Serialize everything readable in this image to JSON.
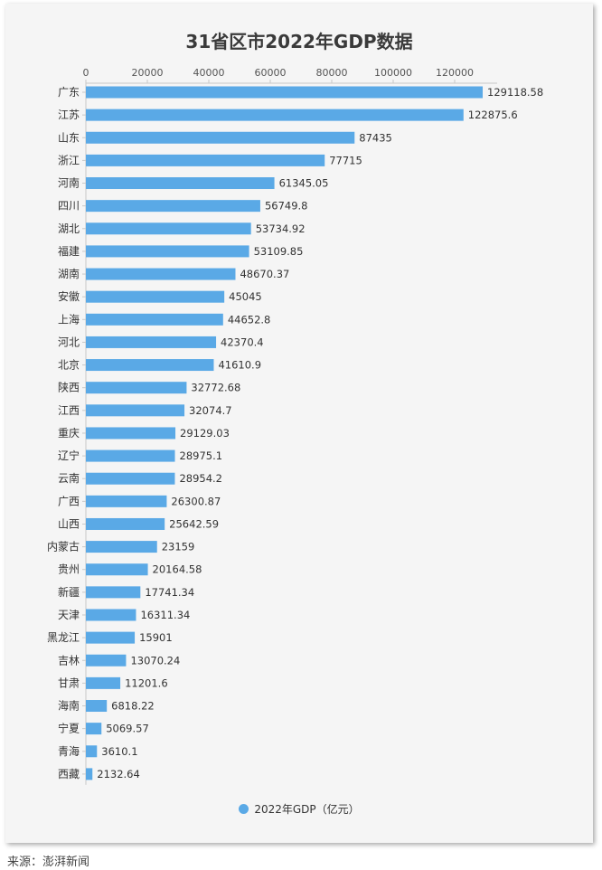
{
  "chart_data": {
    "type": "bar",
    "orientation": "horizontal",
    "title": "31省区市2022年GDP数据",
    "categories": [
      "广东",
      "江苏",
      "山东",
      "浙江",
      "河南",
      "四川",
      "湖北",
      "福建",
      "湖南",
      "安徽",
      "上海",
      "河北",
      "北京",
      "陕西",
      "江西",
      "重庆",
      "辽宁",
      "云南",
      "广西",
      "山西",
      "内蒙古",
      "贵州",
      "新疆",
      "天津",
      "黑龙江",
      "吉林",
      "甘肃",
      "海南",
      "宁夏",
      "青海",
      "西藏"
    ],
    "series": [
      {
        "name": "2022年GDP（亿元）",
        "values": [
          129118.58,
          122875.6,
          87435,
          77715,
          61345.05,
          56749.8,
          53734.92,
          53109.85,
          48670.37,
          45045,
          44652.8,
          42370.4,
          41610.9,
          32772.68,
          32074.7,
          29129.03,
          28975.1,
          28954.2,
          26300.87,
          25642.59,
          23159,
          20164.58,
          17741.34,
          16311.34,
          15901,
          13070.24,
          11201.6,
          6818.22,
          5069.57,
          3610.1,
          2132.64
        ],
        "labels": [
          "129118.58",
          "122875.6",
          "87435",
          "77715",
          "61345.05",
          "56749.8",
          "53734.92",
          "53109.85",
          "48670.37",
          "45045",
          "44652.8",
          "42370.4",
          "41610.9",
          "32772.68",
          "32074.7",
          "29129.03",
          "28975.1",
          "28954.2",
          "26300.87",
          "25642.59",
          "23159",
          "20164.58",
          "17741.34",
          "16311.34",
          "15901",
          "13070.24",
          "11201.6",
          "6818.22",
          "5069.57",
          "3610.1",
          "2132.64"
        ]
      }
    ],
    "xaxis": {
      "position": "top",
      "ticks": [
        0,
        20000,
        40000,
        60000,
        80000,
        100000,
        120000
      ],
      "tick_labels": [
        "0",
        "20000",
        "40000",
        "60000",
        "80000",
        "100000",
        "120000"
      ],
      "range": [
        0,
        135000
      ]
    },
    "grid": false,
    "legend_position": "bottom",
    "bar_color": "#5aa9e6"
  },
  "source_text": "来源：澎湃新闻"
}
